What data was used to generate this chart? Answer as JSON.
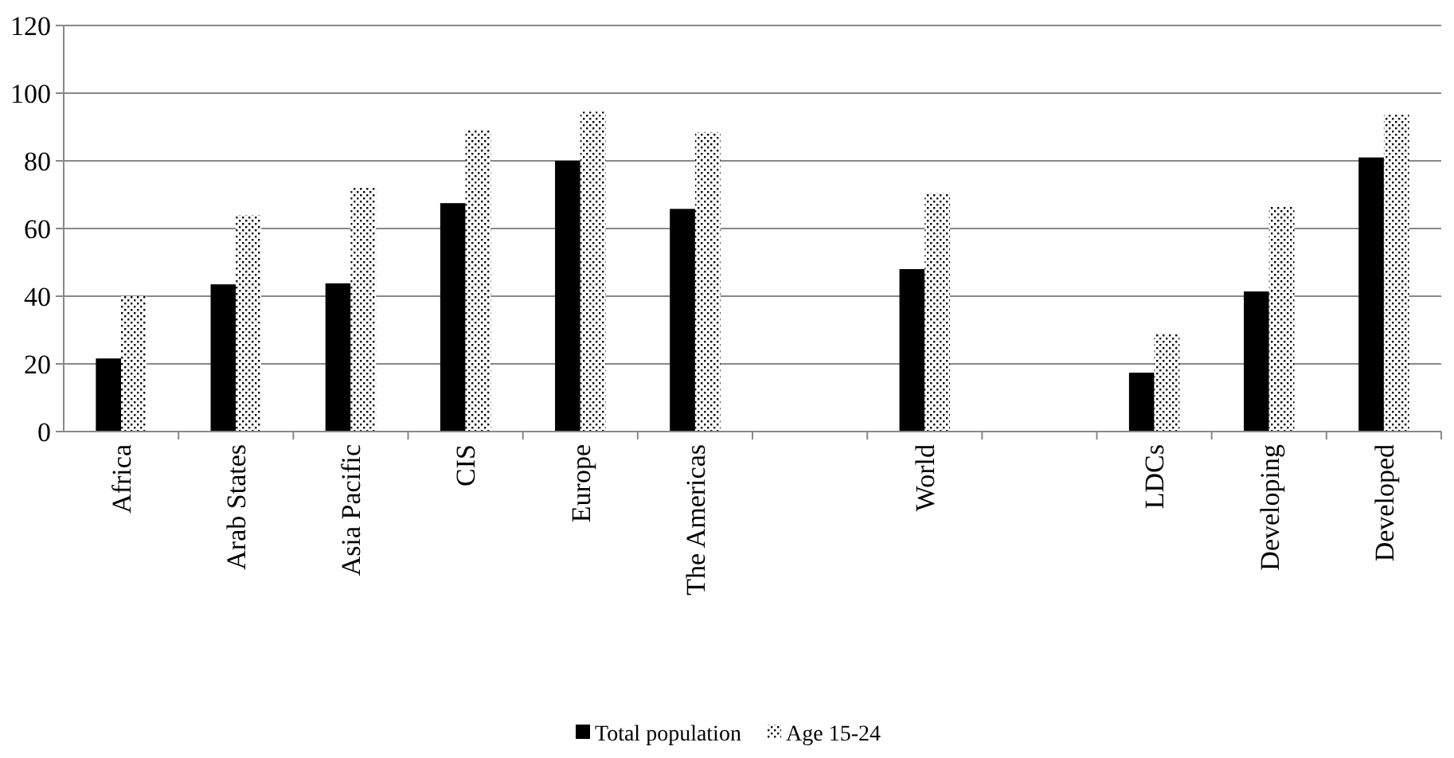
{
  "chart_data": {
    "type": "bar",
    "categories": [
      "Africa",
      "Arab States",
      "Asia Pacific",
      "CIS",
      "Europe",
      "The Americas",
      null,
      "World",
      null,
      "LDCs",
      "Developing",
      "Developed"
    ],
    "series": [
      {
        "name": "Total population",
        "color": "#000000",
        "values": [
          21.6,
          43.5,
          43.8,
          67.5,
          80,
          65.8,
          null,
          48,
          null,
          17.4,
          41.4,
          81
        ]
      },
      {
        "name": "Age 15-24",
        "color": "#000000",
        "values": [
          40,
          64,
          72,
          89,
          94.5,
          88.5,
          null,
          70.5,
          null,
          29,
          66.4,
          93.6
        ]
      }
    ],
    "ylim": [
      0,
      120
    ],
    "yticks": [
      0,
      20,
      40,
      60,
      80,
      100,
      120
    ],
    "grid": "y",
    "legend": "bottom"
  }
}
